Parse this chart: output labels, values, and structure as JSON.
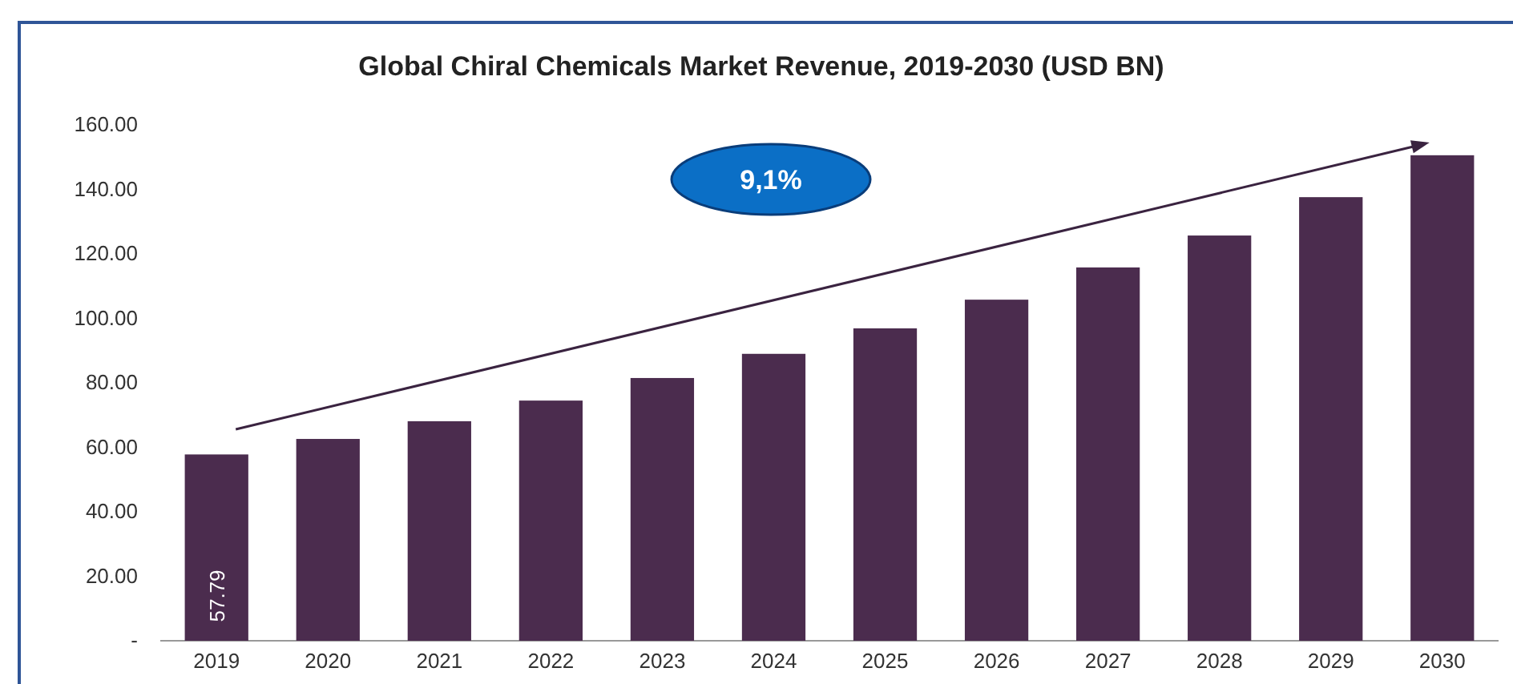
{
  "chart_data": {
    "type": "bar",
    "title": "Global Chiral Chemicals Market Revenue, 2019-2030 (USD BN)",
    "categories": [
      "2019",
      "2020",
      "2021",
      "2022",
      "2023",
      "2024",
      "2025",
      "2026",
      "2027",
      "2028",
      "2029",
      "2030"
    ],
    "values": [
      57.79,
      62.6,
      68.1,
      74.5,
      81.5,
      89,
      96.9,
      105.8,
      115.8,
      125.7,
      137.6,
      150.6
    ],
    "value_labels": [
      "57.79",
      null,
      null,
      null,
      null,
      null,
      null,
      null,
      null,
      null,
      null,
      null
    ],
    "color": "#4b2c4e",
    "ylim": [
      0,
      160
    ],
    "yticks": [
      {
        "value": 0,
        "label": "-"
      },
      {
        "value": 20,
        "label": "20.00"
      },
      {
        "value": 40,
        "label": "40.00"
      },
      {
        "value": 60,
        "label": "60.00"
      },
      {
        "value": 80,
        "label": "80.00"
      },
      {
        "value": 100,
        "label": "100.00"
      },
      {
        "value": 120,
        "label": "120.00"
      },
      {
        "value": 140,
        "label": "140.00"
      },
      {
        "value": 160,
        "label": "160.00"
      }
    ],
    "grid": false,
    "annotations": [
      "9,1%"
    ]
  }
}
